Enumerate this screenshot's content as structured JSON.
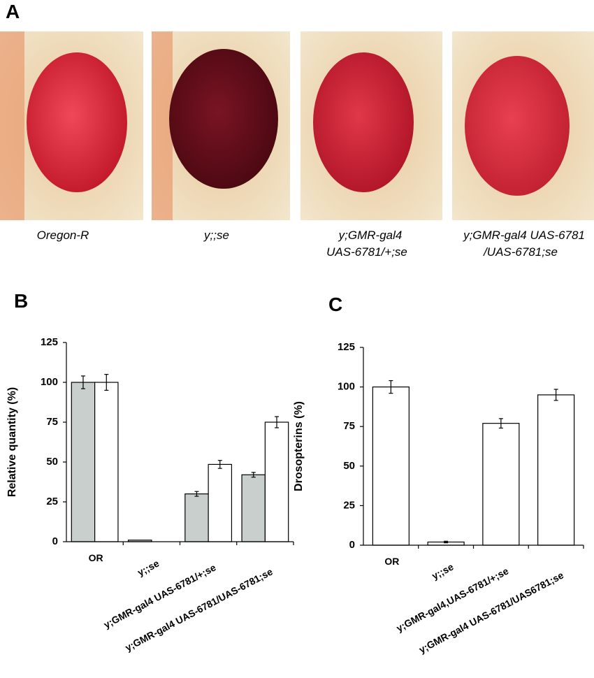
{
  "panel_labels": [
    "A",
    "B",
    "C"
  ],
  "photos": [
    {
      "caption": [
        "Oregon-R"
      ]
    },
    {
      "caption": [
        "y;;se"
      ]
    },
    {
      "caption": [
        "y;GMR-gal4",
        "UAS-6781/+;se"
      ]
    },
    {
      "caption": [
        "y;GMR-gal4 UAS-6781",
        "/UAS-6781;se"
      ]
    }
  ],
  "chart_data": [
    {
      "type": "bar",
      "ylabel": "Relative quantity (%)",
      "categories": [
        "OR",
        "y;;se",
        "y;GMR-gal4 UAS-6781/+;se",
        "y;GMR-gal4 UAS-6781/UAS-6781;se"
      ],
      "series": [
        {
          "color": "#c8cfcd",
          "values": [
            100,
            1,
            30,
            42
          ],
          "errors": [
            4,
            null,
            1.5,
            1.5
          ]
        },
        {
          "color": "#ffffff",
          "values": [
            100,
            0,
            48.5,
            75
          ],
          "errors": [
            5,
            null,
            2.5,
            3.5
          ]
        }
      ],
      "ylim": [
        0,
        125
      ],
      "yticks": [
        0,
        25,
        50,
        75,
        100,
        125
      ]
    },
    {
      "type": "bar",
      "ylabel": "Drosopterins (%)",
      "categories": [
        "OR",
        "y;;se",
        "y;GMR-gal4,UAS-6781/+;se",
        "y;GMR-gal4 UAS-6781/UAS6781;se"
      ],
      "series": [
        {
          "color": "#ffffff",
          "values": [
            100,
            2,
            77,
            95
          ],
          "errors": [
            4,
            0.5,
            3,
            3.5
          ]
        }
      ],
      "ylim": [
        0,
        125
      ],
      "yticks": [
        0,
        25,
        50,
        75,
        100,
        125
      ]
    }
  ]
}
